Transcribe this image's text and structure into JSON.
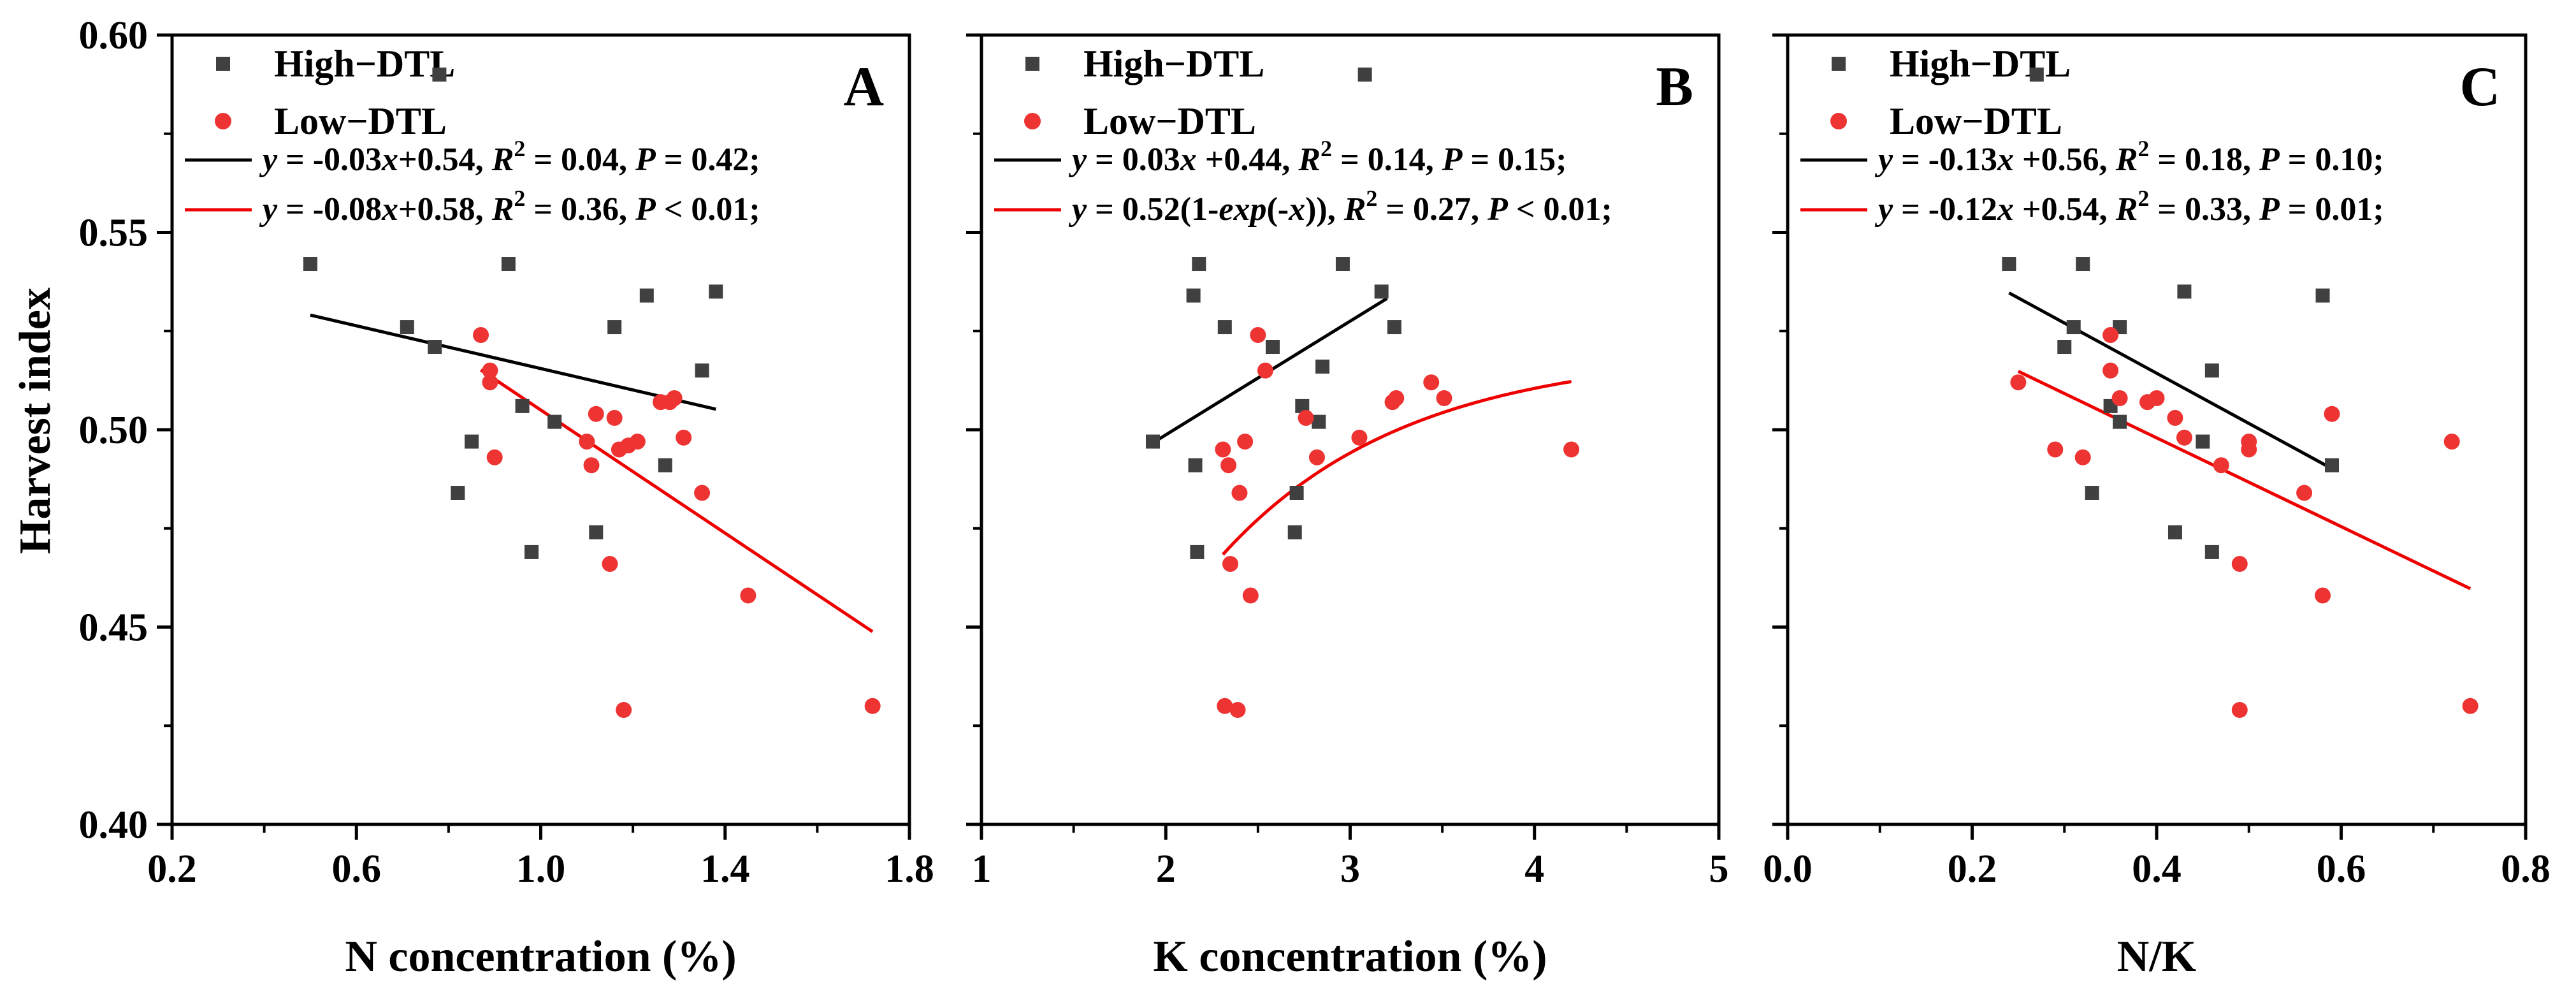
{
  "y_axis_label": "Harvest index",
  "legend_labels": [
    "High−DTL",
    "Low−DTL"
  ],
  "colors": {
    "high": "#404040",
    "low": "#ee3333",
    "high_fit": "#000000",
    "low_fit": "#ee0000"
  },
  "chart_data": [
    {
      "type": "scatter",
      "panel": "A",
      "xlabel": "N concentration (%)",
      "ylabel": "Harvest index",
      "xlim": [
        0.2,
        1.8
      ],
      "ylim": [
        0.4,
        0.6
      ],
      "xticks": [
        "0.2",
        "0.6",
        "1.0",
        "1.4",
        "1.8"
      ],
      "yticks": [
        "0.40",
        "0.45",
        "0.50",
        "0.55",
        "0.60"
      ],
      "equations": [
        "y = -0.03x+0.54, R2 = 0.04, P = 0.42;",
        "y = -0.08x+0.58, R2 = 0.36, P < 0.01;"
      ],
      "series": [
        {
          "name": "High−DTL",
          "marker": "square",
          "points": [
            [
              0.5,
              0.542
            ],
            [
              0.71,
              0.526
            ],
            [
              0.77,
              0.521
            ],
            [
              0.78,
              0.59
            ],
            [
              0.82,
              0.484
            ],
            [
              0.85,
              0.497
            ],
            [
              0.93,
              0.542
            ],
            [
              0.96,
              0.506
            ],
            [
              0.98,
              0.469
            ],
            [
              1.03,
              0.502
            ],
            [
              1.12,
              0.474
            ],
            [
              1.16,
              0.526
            ],
            [
              1.23,
              0.534
            ],
            [
              1.27,
              0.491
            ],
            [
              1.35,
              0.515
            ],
            [
              1.38,
              0.535
            ]
          ],
          "fit": {
            "kind": "linear",
            "slope": -0.0271,
            "intercept": 0.5426,
            "x_range": [
              0.5,
              1.38
            ]
          }
        },
        {
          "name": "Low−DTL",
          "marker": "circle",
          "points": [
            [
              0.87,
              0.524
            ],
            [
              0.89,
              0.515
            ],
            [
              0.89,
              0.512
            ],
            [
              0.9,
              0.493
            ],
            [
              1.1,
              0.497
            ],
            [
              1.11,
              0.491
            ],
            [
              1.12,
              0.504
            ],
            [
              1.15,
              0.466
            ],
            [
              1.16,
              0.503
            ],
            [
              1.17,
              0.495
            ],
            [
              1.18,
              0.429
            ],
            [
              1.19,
              0.496
            ],
            [
              1.21,
              0.497
            ],
            [
              1.26,
              0.507
            ],
            [
              1.28,
              0.507
            ],
            [
              1.29,
              0.508
            ],
            [
              1.31,
              0.498
            ],
            [
              1.35,
              0.484
            ],
            [
              1.45,
              0.458
            ],
            [
              1.72,
              0.43
            ]
          ],
          "fit": {
            "kind": "linear",
            "slope": -0.078,
            "intercept": 0.583,
            "x_range": [
              0.87,
              1.72
            ]
          }
        }
      ]
    },
    {
      "type": "scatter",
      "panel": "B",
      "xlabel": "K concentration (%)",
      "ylabel": "",
      "xlim": [
        1,
        5
      ],
      "ylim": [
        0.4,
        0.6
      ],
      "xticks": [
        "1",
        "2",
        "3",
        "4",
        "5"
      ],
      "yticks": [],
      "equations": [
        "y = 0.03x +0.44, R2 = 0.14, P = 0.15;",
        "y = 0.52(1-exp(-x)), R2 = 0.27, P < 0.01;"
      ],
      "series": [
        {
          "name": "High−DTL",
          "marker": "square",
          "points": [
            [
              1.93,
              0.497
            ],
            [
              2.15,
              0.534
            ],
            [
              2.16,
              0.491
            ],
            [
              2.17,
              0.469
            ],
            [
              2.18,
              0.542
            ],
            [
              2.32,
              0.526
            ],
            [
              2.58,
              0.521
            ],
            [
              2.7,
              0.474
            ],
            [
              2.71,
              0.484
            ],
            [
              2.74,
              0.506
            ],
            [
              2.83,
              0.502
            ],
            [
              2.85,
              0.516
            ],
            [
              2.96,
              0.542
            ],
            [
              3.08,
              0.59
            ],
            [
              3.17,
              0.535
            ],
            [
              3.24,
              0.526
            ]
          ],
          "fit": {
            "kind": "linear",
            "slope": 0.0288,
            "intercept": 0.4411,
            "x_range": [
              1.93,
              3.2
            ]
          }
        },
        {
          "name": "Low−DTL",
          "marker": "circle",
          "points": [
            [
              2.31,
              0.495
            ],
            [
              2.32,
              0.43
            ],
            [
              2.34,
              0.491
            ],
            [
              2.35,
              0.466
            ],
            [
              2.39,
              0.429
            ],
            [
              2.4,
              0.484
            ],
            [
              2.43,
              0.497
            ],
            [
              2.46,
              0.458
            ],
            [
              2.5,
              0.524
            ],
            [
              2.54,
              0.515
            ],
            [
              2.76,
              0.503
            ],
            [
              2.82,
              0.493
            ],
            [
              3.05,
              0.498
            ],
            [
              3.23,
              0.507
            ],
            [
              3.25,
              0.508
            ],
            [
              3.44,
              0.512
            ],
            [
              3.51,
              0.508
            ],
            [
              4.2,
              0.495
            ]
          ],
          "fit": {
            "kind": "exp_rise",
            "a": 0.52,
            "x_range": [
              2.31,
              4.2
            ]
          }
        }
      ]
    },
    {
      "type": "scatter",
      "panel": "C",
      "xlabel": "N/K",
      "ylabel": "",
      "xlim": [
        0.0,
        0.8
      ],
      "ylim": [
        0.4,
        0.6
      ],
      "xticks": [
        "0.0",
        "0.2",
        "0.4",
        "0.6",
        "0.8"
      ],
      "yticks": [],
      "equations": [
        "y = -0.13x +0.56, R2 = 0.18, P = 0.10;",
        "y = -0.12x +0.54, R2 = 0.33, P = 0.01;"
      ],
      "series": [
        {
          "name": "High−DTL",
          "marker": "square",
          "points": [
            [
              0.24,
              0.542
            ],
            [
              0.27,
              0.59
            ],
            [
              0.3,
              0.521
            ],
            [
              0.31,
              0.526
            ],
            [
              0.32,
              0.542
            ],
            [
              0.33,
              0.484
            ],
            [
              0.35,
              0.506
            ],
            [
              0.36,
              0.502
            ],
            [
              0.36,
              0.526
            ],
            [
              0.42,
              0.474
            ],
            [
              0.43,
              0.535
            ],
            [
              0.45,
              0.497
            ],
            [
              0.46,
              0.469
            ],
            [
              0.46,
              0.515
            ],
            [
              0.58,
              0.534
            ],
            [
              0.59,
              0.491
            ]
          ],
          "fit": {
            "kind": "linear",
            "slope": -0.1272,
            "intercept": 0.5652,
            "x_range": [
              0.24,
              0.59
            ]
          }
        },
        {
          "name": "Low−DTL",
          "marker": "circle",
          "points": [
            [
              0.25,
              0.512
            ],
            [
              0.29,
              0.495
            ],
            [
              0.32,
              0.493
            ],
            [
              0.35,
              0.515
            ],
            [
              0.35,
              0.524
            ],
            [
              0.36,
              0.508
            ],
            [
              0.39,
              0.507
            ],
            [
              0.4,
              0.508
            ],
            [
              0.42,
              0.503
            ],
            [
              0.43,
              0.498
            ],
            [
              0.47,
              0.491
            ],
            [
              0.49,
              0.466
            ],
            [
              0.49,
              0.429
            ],
            [
              0.5,
              0.497
            ],
            [
              0.5,
              0.495
            ],
            [
              0.56,
              0.484
            ],
            [
              0.58,
              0.458
            ],
            [
              0.59,
              0.504
            ],
            [
              0.72,
              0.497
            ],
            [
              0.74,
              0.43
            ]
          ],
          "fit": {
            "kind": "linear",
            "slope": -0.1124,
            "intercept": 0.5429,
            "x_range": [
              0.25,
              0.74
            ]
          }
        }
      ]
    }
  ]
}
